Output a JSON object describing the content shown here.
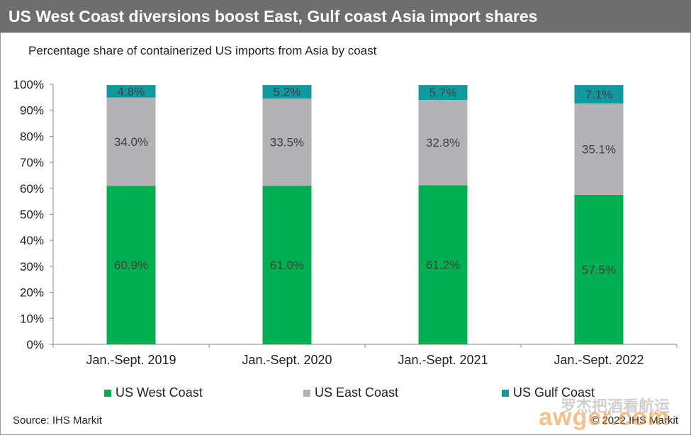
{
  "header": {
    "title": "US West Coast diversions boost East, Gulf coast Asia import shares"
  },
  "subtitle": "Percentage share of containerized US imports from Asia by coast",
  "chart_data": {
    "type": "bar",
    "stacked": true,
    "categories": [
      "Jan.-Sept. 2019",
      "Jan.-Sept. 2020",
      "Jan.-Sept. 2021",
      "Jan.-Sept. 2022"
    ],
    "series": [
      {
        "name": "US West Coast",
        "color": "#00b050",
        "values": [
          60.9,
          61.0,
          61.2,
          57.5
        ],
        "labels": [
          "60.9%",
          "61.0%",
          "61.2%",
          "57.5%"
        ]
      },
      {
        "name": "US East Coast",
        "color": "#b3b3b6",
        "values": [
          34.0,
          33.5,
          32.8,
          35.1
        ],
        "labels": [
          "34.0%",
          "33.5%",
          "32.8%",
          "35.1%"
        ]
      },
      {
        "name": "US Gulf Coast",
        "color": "#109aa0",
        "values": [
          4.8,
          5.2,
          5.7,
          7.1
        ],
        "labels": [
          "4.8%",
          "5.2%",
          "5.7%",
          "7.1%"
        ]
      }
    ],
    "yticks": [
      "0%",
      "10%",
      "20%",
      "30%",
      "40%",
      "50%",
      "60%",
      "70%",
      "80%",
      "90%",
      "100%"
    ],
    "ylim": [
      0,
      100
    ],
    "grid": false,
    "legend": "bottom"
  },
  "footer": {
    "source": "Source: IHS Markit",
    "copyright": "© 2022 IHS Markit"
  },
  "watermark": {
    "cn": "罗杰把酒看航运",
    "en": "awger.com"
  }
}
